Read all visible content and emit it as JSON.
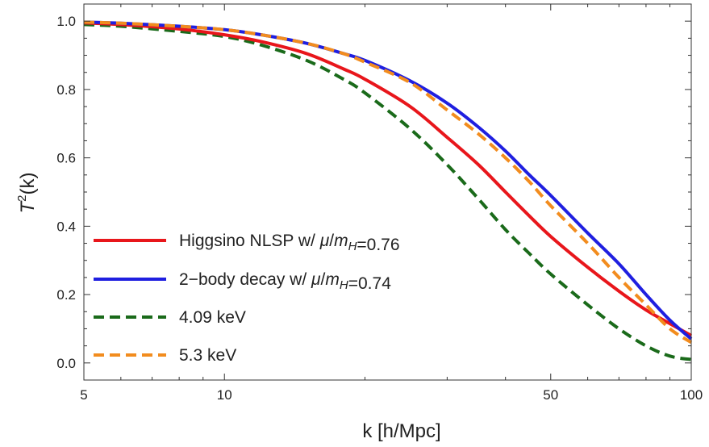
{
  "chart_data": {
    "type": "line",
    "xscale": "log",
    "xlabel": "k [h/Mpc]",
    "ylabel_main": "T",
    "ylabel_sup": "2",
    "ylabel_rest": "(k)",
    "xlim": [
      5,
      100
    ],
    "ylim": [
      -0.05,
      1.05
    ],
    "xticks": [
      5,
      10,
      50,
      100
    ],
    "xtick_labels": [
      "5",
      "10",
      "50",
      "100"
    ],
    "yticks": [
      0.0,
      0.2,
      0.4,
      0.6,
      0.8,
      1.0
    ],
    "ytick_labels": [
      "0.0",
      "0.2",
      "0.4",
      "0.6",
      "0.8",
      "1.0"
    ],
    "grid": false,
    "legend_position": "lower-left",
    "series": [
      {
        "name": "Higgsino NLSP w/ μ/m_H=0.76",
        "legend_parts": [
          {
            "t": "Higgsino NLSP w/ ",
            "it": false
          },
          {
            "t": "μ",
            "it": true
          },
          {
            "t": "/",
            "it": false
          },
          {
            "t": "m",
            "it": true
          },
          {
            "t": "H",
            "it": true,
            "sub": true
          },
          {
            "t": "=0.76",
            "it": false
          }
        ],
        "color": "#e8161b",
        "dash": "solid",
        "x": [
          5,
          6,
          8,
          10,
          12,
          15,
          18,
          20,
          25,
          30,
          35,
          40,
          45,
          50,
          60,
          70,
          80,
          90,
          100
        ],
        "y": [
          0.995,
          0.99,
          0.977,
          0.96,
          0.94,
          0.905,
          0.86,
          0.83,
          0.75,
          0.66,
          0.58,
          0.5,
          0.43,
          0.37,
          0.28,
          0.21,
          0.155,
          0.115,
          0.08
        ]
      },
      {
        "name": "2-body decay w/ μ/m_H=0.74",
        "legend_parts": [
          {
            "t": "2−body decay w/ ",
            "it": false
          },
          {
            "t": "μ",
            "it": true
          },
          {
            "t": "/",
            "it": false
          },
          {
            "t": "m",
            "it": true
          },
          {
            "t": "H",
            "it": true,
            "sub": true
          },
          {
            "t": "=0.74",
            "it": false
          }
        ],
        "color": "#1f1fe0",
        "dash": "solid",
        "x": [
          5,
          6,
          8,
          10,
          12,
          15,
          18,
          20,
          25,
          30,
          35,
          40,
          45,
          50,
          60,
          70,
          80,
          90,
          100
        ],
        "y": [
          0.997,
          0.994,
          0.985,
          0.975,
          0.96,
          0.935,
          0.905,
          0.885,
          0.825,
          0.76,
          0.69,
          0.62,
          0.55,
          0.49,
          0.38,
          0.29,
          0.2,
          0.125,
          0.07
        ]
      },
      {
        "name": "4.09 keV",
        "legend_parts": [
          {
            "t": "4.09 keV",
            "it": false
          }
        ],
        "color": "#1a6a1a",
        "dash": "dashed",
        "x": [
          5,
          6,
          8,
          10,
          12,
          15,
          18,
          20,
          25,
          30,
          35,
          40,
          45,
          50,
          60,
          70,
          80,
          90,
          100
        ],
        "y": [
          0.99,
          0.985,
          0.97,
          0.955,
          0.93,
          0.885,
          0.83,
          0.79,
          0.685,
          0.58,
          0.48,
          0.39,
          0.32,
          0.26,
          0.17,
          0.1,
          0.05,
          0.02,
          0.01
        ]
      },
      {
        "name": "5.3 keV",
        "legend_parts": [
          {
            "t": "5.3 keV",
            "it": false
          }
        ],
        "color": "#f28c1e",
        "dash": "dashed",
        "x": [
          5,
          6,
          8,
          10,
          12,
          15,
          18,
          20,
          25,
          30,
          35,
          40,
          45,
          50,
          60,
          70,
          80,
          90,
          100
        ],
        "y": [
          0.997,
          0.994,
          0.985,
          0.975,
          0.96,
          0.935,
          0.905,
          0.88,
          0.82,
          0.74,
          0.67,
          0.6,
          0.53,
          0.46,
          0.35,
          0.25,
          0.17,
          0.1,
          0.06
        ]
      }
    ]
  }
}
